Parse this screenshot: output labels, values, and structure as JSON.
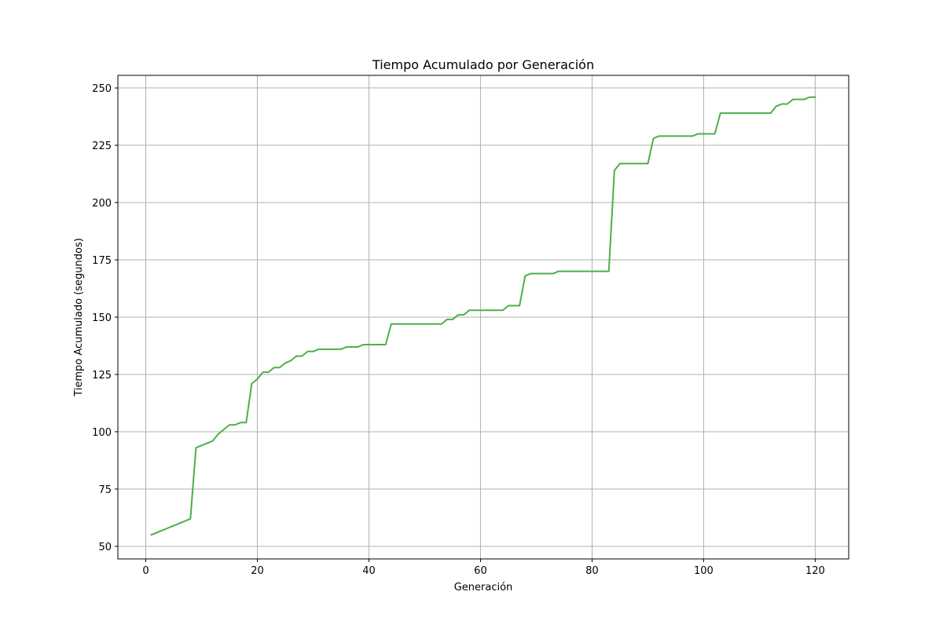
{
  "chart_data": {
    "type": "line",
    "title": "Tiempo Acumulado por Generación",
    "xlabel": "Generación",
    "ylabel": "Tiempo Acumulado (segundos)",
    "xlim": [
      -5,
      126
    ],
    "ylim": [
      44.5,
      255.5
    ],
    "xticks": [
      0,
      20,
      40,
      60,
      80,
      100,
      120
    ],
    "yticks": [
      50,
      75,
      100,
      125,
      150,
      175,
      200,
      225,
      250
    ],
    "grid": true,
    "series": [
      {
        "color": "#4daf4a",
        "x": [
          1,
          8,
          9,
          12,
          13,
          15,
          16,
          17,
          18,
          19,
          20,
          21,
          22,
          23,
          24,
          25,
          26,
          27,
          28,
          29,
          30,
          31,
          35,
          36,
          38,
          39,
          43,
          44,
          53,
          54,
          55,
          56,
          57,
          58,
          64,
          65,
          67,
          68,
          69,
          73,
          74,
          83,
          84,
          85,
          90,
          91,
          92,
          98,
          99,
          102,
          103,
          112,
          113,
          114,
          115,
          116,
          118,
          119,
          120
        ],
        "y": [
          55,
          62,
          93,
          96,
          99,
          103,
          103,
          104,
          104,
          121,
          123,
          126,
          126,
          128,
          128,
          130,
          131,
          133,
          133,
          135,
          135,
          136,
          136,
          137,
          137,
          138,
          138,
          147,
          147,
          149,
          149,
          151,
          151,
          153,
          153,
          155,
          155,
          168,
          169,
          169,
          170,
          170,
          214,
          217,
          217,
          228,
          229,
          229,
          230,
          230,
          239,
          239,
          242,
          243,
          243,
          245,
          245,
          246,
          246
        ]
      }
    ]
  }
}
